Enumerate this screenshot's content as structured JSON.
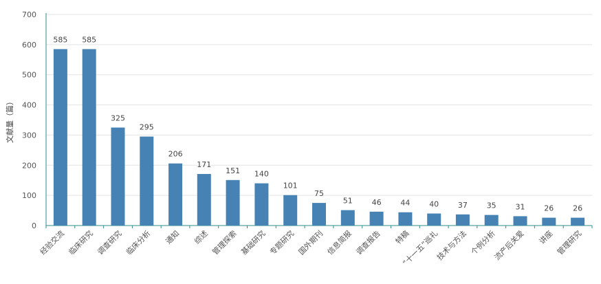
{
  "chart_data": {
    "type": "bar",
    "ylabel": "文献量（篇）",
    "ylim": [
      0,
      700
    ],
    "yticks": [
      0,
      100,
      200,
      300,
      400,
      500,
      600,
      700
    ],
    "grid": true,
    "bar_color": "#4682b4",
    "categories": [
      "经验交流",
      "临床研究",
      "调查研究",
      "临床分析",
      "通知",
      "综述",
      "管理探索",
      "基础研究",
      "专题研究",
      "国外期刊",
      "信息简报",
      "调查报告",
      "特稿",
      "“十一五”巡礼",
      "技术与方法",
      "个例分析",
      "流产后关爱",
      "讲座",
      "管理研究"
    ],
    "values": [
      585,
      585,
      325,
      295,
      206,
      171,
      151,
      140,
      101,
      75,
      51,
      46,
      44,
      40,
      37,
      35,
      31,
      26,
      26
    ]
  }
}
